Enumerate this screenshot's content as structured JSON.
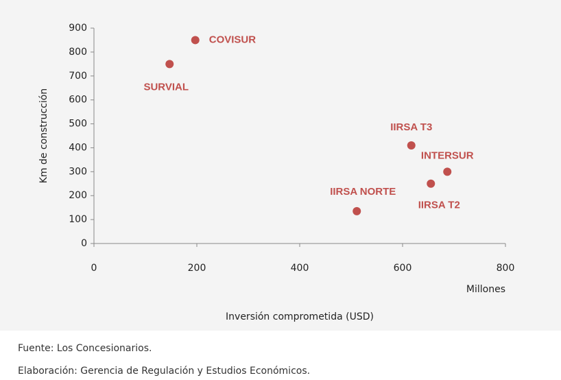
{
  "chart_data": {
    "type": "scatter",
    "x_label": "Inversión comprometida (USD)",
    "y_label": "Km de construcción",
    "x_unit_note": "Millones",
    "points": [
      {
        "label": "COVISUR",
        "x": 197,
        "y": 850
      },
      {
        "label": "SURVIAL",
        "x": 147,
        "y": 750
      },
      {
        "label": "IIRSA T3",
        "x": 617,
        "y": 410
      },
      {
        "label": "INTERSUR",
        "x": 687,
        "y": 300
      },
      {
        "label": "IIRSA T2",
        "x": 655,
        "y": 250
      },
      {
        "label": "IIRSA NORTE",
        "x": 511,
        "y": 135
      }
    ],
    "color": "#c0504d",
    "xlim": [
      0,
      800
    ],
    "xticks": [
      0,
      200,
      400,
      600,
      800
    ],
    "ylim": [
      0,
      900
    ],
    "yticks": [
      0,
      100,
      200,
      300,
      400,
      500,
      600,
      700,
      800,
      900
    ],
    "notes": [
      "Fuente: Los Concesionarios.",
      "Elaboración: Gerencia de Regulación y Estudios Económicos."
    ]
  }
}
